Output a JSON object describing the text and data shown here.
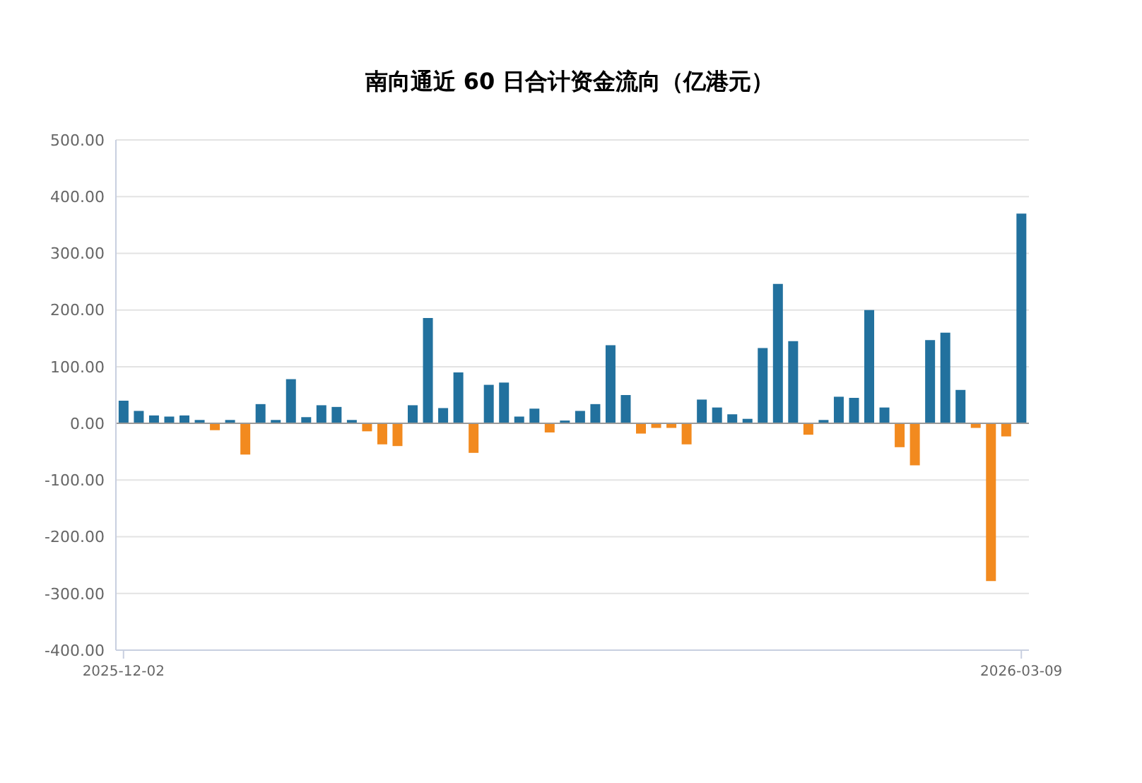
{
  "chart_data": {
    "type": "bar",
    "title": "南向通近 60 日合计资金流向（亿港元）",
    "categories": [
      "2025-12-02",
      null,
      null,
      null,
      null,
      null,
      null,
      null,
      null,
      null,
      null,
      null,
      null,
      null,
      null,
      null,
      null,
      null,
      null,
      null,
      null,
      null,
      null,
      null,
      null,
      null,
      null,
      null,
      null,
      null,
      null,
      null,
      null,
      null,
      null,
      null,
      null,
      null,
      null,
      null,
      null,
      null,
      null,
      null,
      null,
      null,
      null,
      null,
      null,
      null,
      null,
      null,
      null,
      null,
      null,
      null,
      null,
      null,
      null,
      "2026-03-09"
    ],
    "values": [
      40,
      22,
      14,
      12,
      14,
      6,
      -12,
      6,
      -55,
      34,
      6,
      78,
      11,
      32,
      29,
      6,
      -14,
      -37,
      -40,
      32,
      186,
      27,
      90,
      -52,
      68,
      72,
      12,
      26,
      -16,
      5,
      22,
      34,
      138,
      50,
      -18,
      -8,
      -8,
      -37,
      42,
      28,
      16,
      8,
      133,
      246,
      145,
      -20,
      6,
      47,
      45,
      200,
      28,
      -42,
      -74,
      147,
      160,
      59,
      -8,
      -278,
      -23,
      370
    ],
    "colors": [
      "#22719e",
      "#22719e",
      "#22719e",
      "#22719e",
      "#22719e",
      "#22719e",
      "#f28a1f",
      "#22719e",
      "#f28a1f",
      "#22719e",
      "#22719e",
      "#22719e",
      "#22719e",
      "#22719e",
      "#22719e",
      "#22719e",
      "#f28a1f",
      "#f28a1f",
      "#f28a1f",
      "#22719e",
      "#22719e",
      "#22719e",
      "#22719e",
      "#f28a1f",
      "#22719e",
      "#22719e",
      "#22719e",
      "#22719e",
      "#f28a1f",
      "#22719e",
      "#22719e",
      "#22719e",
      "#22719e",
      "#22719e",
      "#f28a1f",
      "#f28a1f",
      "#f28a1f",
      "#f28a1f",
      "#22719e",
      "#22719e",
      "#22719e",
      "#22719e",
      "#22719e",
      "#22719e",
      "#22719e",
      "#f28a1f",
      "#22719e",
      "#22719e",
      "#22719e",
      "#22719e",
      "#22719e",
      "#f28a1f",
      "#f28a1f",
      "#22719e",
      "#22719e",
      "#22719e",
      "#f28a1f",
      "#f28a1f",
      "#f28a1f",
      "#22719e"
    ],
    "ylim": [
      -400,
      500
    ],
    "yticks": [
      {
        "value": -400,
        "label": "-400.00"
      },
      {
        "value": -300,
        "label": "-300.00"
      },
      {
        "value": -200,
        "label": "-200.00"
      },
      {
        "value": -100,
        "label": "-100.00"
      },
      {
        "value": 0,
        "label": "0.00"
      },
      {
        "value": 100,
        "label": "100.00"
      },
      {
        "value": 200,
        "label": "200.00"
      },
      {
        "value": 300,
        "label": "300.00"
      },
      {
        "value": 400,
        "label": "400.00"
      },
      {
        "value": 500,
        "label": "500.00"
      }
    ],
    "grid": "y"
  }
}
